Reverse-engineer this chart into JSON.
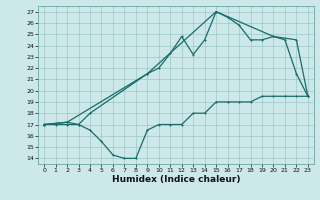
{
  "xlabel": "Humidex (Indice chaleur)",
  "bg_color": "#cce8e8",
  "grid_color": "#9dc8c8",
  "line_color": "#1a6b6b",
  "xlim": [
    -0.5,
    23.5
  ],
  "ylim": [
    13.5,
    27.5
  ],
  "xticks": [
    0,
    1,
    2,
    3,
    4,
    5,
    6,
    7,
    8,
    9,
    10,
    11,
    12,
    13,
    14,
    15,
    16,
    17,
    18,
    19,
    20,
    21,
    22,
    23
  ],
  "yticks": [
    14,
    15,
    16,
    17,
    18,
    19,
    20,
    21,
    22,
    23,
    24,
    25,
    26,
    27
  ],
  "series1_x": [
    0,
    1,
    2,
    3,
    4,
    5,
    6,
    7,
    8,
    9,
    10,
    11,
    12,
    13,
    14,
    15,
    16,
    17,
    18,
    19,
    20,
    21,
    22,
    23
  ],
  "series1_y": [
    17,
    17,
    17,
    17,
    16.5,
    15.5,
    14.3,
    14,
    14,
    16.5,
    17,
    17,
    17,
    18,
    18,
    19,
    19,
    19,
    19,
    19.5,
    19.5,
    19.5,
    19.5,
    19.5
  ],
  "series2_x": [
    0,
    2,
    3,
    4,
    9,
    10,
    11,
    12,
    13,
    14,
    15,
    16,
    17,
    18,
    19,
    20,
    21,
    22,
    23
  ],
  "series2_y": [
    17,
    17.2,
    17,
    18,
    21.5,
    22,
    23.3,
    24.8,
    23.2,
    24.5,
    27,
    26.5,
    25.8,
    24.5,
    24.5,
    24.8,
    24.5,
    21.5,
    19.5
  ],
  "series3_x": [
    0,
    2,
    9,
    15,
    20,
    22,
    23
  ],
  "series3_y": [
    17,
    17.2,
    21.5,
    27,
    24.8,
    24.5,
    19.5
  ]
}
